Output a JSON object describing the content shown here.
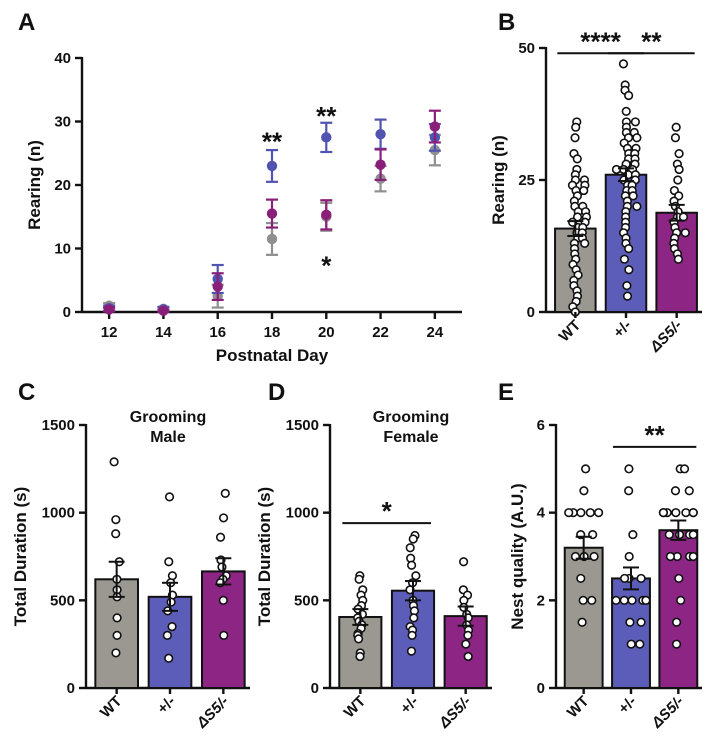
{
  "colors": {
    "wt": "#8f8f8f",
    "het": "#5054b0",
    "ds5": "#8a1f7a",
    "wt_bar": "#9b9891",
    "het_bar": "#5c5db8",
    "ds5_bar": "#8d2585"
  },
  "chart_data": [
    {
      "panel": "A",
      "type": "scatter",
      "xlabel": "Postnatal Day",
      "ylabel": "Rearing (n)",
      "ylim": [
        0,
        40
      ],
      "yticks": [
        0,
        10,
        20,
        30,
        40
      ],
      "x": [
        12,
        14,
        16,
        18,
        20,
        22,
        24
      ],
      "series": [
        {
          "key": "wt",
          "values": [
            1.0,
            0.5,
            2.5,
            11.5,
            15.0,
            21.0,
            25.5
          ],
          "err": [
            0.4,
            0.3,
            1.8,
            2.5,
            2.2,
            2.0,
            2.4
          ]
        },
        {
          "key": "het",
          "values": [
            0.6,
            0.4,
            5.2,
            23.0,
            27.5,
            28.0,
            27.5
          ],
          "err": [
            0.4,
            0.4,
            2.2,
            2.5,
            2.3,
            2.3,
            2.1
          ]
        },
        {
          "key": "ds5",
          "values": [
            0.4,
            0.2,
            4.0,
            15.5,
            15.3,
            23.2,
            29.2
          ],
          "err": [
            0.3,
            0.2,
            2.1,
            2.2,
            2.3,
            2.4,
            2.5
          ]
        }
      ],
      "annotations": [
        {
          "x": 18,
          "y": 27,
          "text": "**"
        },
        {
          "x": 20,
          "y": 31,
          "text": "**"
        },
        {
          "x": 20,
          "y": 7.5,
          "text": "*"
        }
      ]
    },
    {
      "panel": "B",
      "type": "bar",
      "ylabel": "Rearing (n)",
      "ylim": [
        0,
        50
      ],
      "yticks": [
        0,
        25,
        50
      ],
      "categories": [
        "WT",
        "+/-",
        "ΔS5/-"
      ],
      "values": [
        15.8,
        26.0,
        18.8
      ],
      "err": [
        1.4,
        1.2,
        1.5
      ],
      "points": [
        [
          36,
          35,
          33,
          30,
          29,
          27,
          26,
          25,
          25,
          24,
          24,
          23,
          23,
          22,
          21,
          20,
          20,
          19,
          19,
          18,
          18,
          17,
          17,
          16,
          16,
          15,
          15,
          14,
          14,
          13,
          13,
          12,
          11,
          10,
          9,
          8,
          7,
          6,
          5,
          4,
          3,
          2,
          1,
          0
        ],
        [
          47,
          43,
          42,
          41,
          38,
          36,
          36,
          35,
          34,
          34,
          33,
          33,
          32,
          31,
          31,
          30,
          30,
          29,
          29,
          28,
          28,
          27,
          27,
          27,
          26,
          26,
          25,
          25,
          24,
          24,
          23,
          23,
          22,
          22,
          21,
          20,
          20,
          19,
          18,
          17,
          16,
          15,
          14,
          13,
          12,
          10,
          8,
          5,
          3
        ],
        [
          35,
          33,
          30,
          28,
          27,
          25,
          23,
          22,
          21,
          20,
          19,
          18,
          18,
          17,
          16,
          15,
          15,
          14,
          13,
          12,
          11,
          10
        ]
      ],
      "significance": [
        {
          "from": 0,
          "to": 1,
          "y": 49,
          "text": "****"
        },
        {
          "from": 1,
          "to": 2,
          "y": 49,
          "text": "**"
        }
      ]
    },
    {
      "panel": "C",
      "type": "bar",
      "title": [
        "Grooming",
        "Male"
      ],
      "ylabel": "Total Duration (s)",
      "ylim": [
        0,
        1500
      ],
      "yticks": [
        0,
        500,
        1000,
        1500
      ],
      "categories": [
        "WT",
        "+/-",
        "ΔS5/-"
      ],
      "values": [
        620,
        520,
        665
      ],
      "err": [
        100,
        80,
        75
      ],
      "points": [
        [
          1290,
          960,
          880,
          720,
          620,
          560,
          520,
          400,
          300,
          200
        ],
        [
          1090,
          720,
          640,
          600,
          530,
          490,
          440,
          350,
          300,
          170
        ],
        [
          1110,
          970,
          860,
          730,
          690,
          640,
          620,
          600,
          500,
          300
        ]
      ]
    },
    {
      "panel": "D",
      "type": "bar",
      "title": [
        "Grooming",
        "Female"
      ],
      "ylabel": "Total Duration (s)",
      "ylim": [
        0,
        1500
      ],
      "yticks": [
        0,
        500,
        1000,
        1500
      ],
      "categories": [
        "WT",
        "+/-",
        "ΔS5/-"
      ],
      "values": [
        405,
        555,
        410
      ],
      "err": [
        45,
        55,
        55
      ],
      "points": [
        [
          640,
          620,
          560,
          530,
          500,
          470,
          450,
          420,
          400,
          380,
          360,
          340,
          310,
          300,
          280,
          200,
          180
        ],
        [
          870,
          850,
          800,
          740,
          700,
          640,
          600,
          560,
          500,
          470,
          440,
          400,
          350,
          330,
          300,
          210
        ],
        [
          720,
          560,
          530,
          500,
          460,
          420,
          400,
          360,
          330,
          300,
          250,
          180
        ]
      ],
      "significance": [
        {
          "from": 0,
          "to": 1,
          "y": 940,
          "text": "*"
        }
      ]
    },
    {
      "panel": "E",
      "type": "bar",
      "ylabel": "Nest quality (A.U.)",
      "ylim": [
        0,
        6
      ],
      "yticks": [
        0,
        2,
        4,
        6
      ],
      "categories": [
        "WT",
        "+/-",
        "ΔS5/-"
      ],
      "values": [
        3.2,
        2.5,
        3.6
      ],
      "err": [
        0.25,
        0.25,
        0.22
      ],
      "points": [
        [
          5,
          4.5,
          4,
          4,
          4,
          4,
          4,
          3.5,
          3.5,
          3,
          3,
          3,
          2.5,
          2,
          2,
          1.5
        ],
        [
          5,
          4.5,
          3.5,
          3,
          2.5,
          2.5,
          2.5,
          2,
          2,
          2,
          2,
          2,
          2,
          1.5,
          1.5,
          1,
          1
        ],
        [
          5,
          5,
          4.5,
          4.5,
          4,
          4,
          4,
          4,
          4,
          4,
          4,
          3.5,
          3.5,
          3.5,
          3.5,
          3,
          3,
          3,
          3,
          2.5,
          2,
          1.5,
          1
        ]
      ],
      "significance": [
        {
          "from": 1,
          "to": 2,
          "y": 5.5,
          "text": "**"
        }
      ]
    }
  ]
}
